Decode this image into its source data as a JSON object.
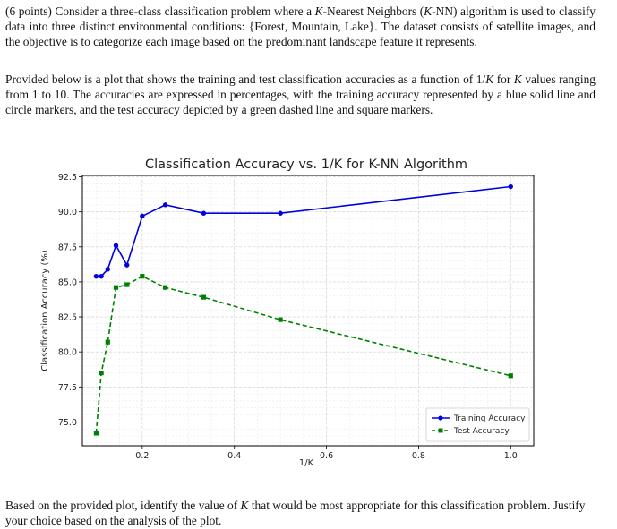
{
  "question": {
    "points_label": "(6 points)",
    "intro_a": " Consider a three-class classification problem where a ",
    "k_var": "K",
    "intro_b": "-Nearest Neighbors (",
    "intro_c": "-NN) algorithm is used to classify data into three distinct environmental conditions: {Forest, Mountain, Lake}. The dataset consists of satellite images, and the objective is to categorize each image based on the predominant landscape feature it represents.",
    "desc_a": "Provided below is a plot that shows the training and test classification accuracies as a function of ",
    "desc_frac": "1/",
    "desc_b": " for ",
    "desc_c": " values ranging from 1 to 10. The accuracies are expressed in percentages, with the training accuracy represented by a blue solid line and circle markers, and the test accuracy depicted by a green dashed line and square markers.",
    "final_a": "Based on the provided plot, identify the value of ",
    "final_b": " that would be most appropriate for this classification problem. Justify your choice based on the analysis of the plot."
  },
  "chart_data": {
    "type": "line",
    "title": "Classification Accuracy vs. 1/K for K-NN Algorithm",
    "xlabel": "1/K",
    "ylabel": "Classification Accuracy (%)",
    "xlim": [
      0.07,
      1.05
    ],
    "ylim": [
      73.3,
      92.6
    ],
    "xticks": [
      0.2,
      0.4,
      0.6,
      0.8,
      1.0
    ],
    "xtick_labels": [
      "0.2",
      "0.4",
      "0.6",
      "0.8",
      "1.0"
    ],
    "yticks": [
      75.0,
      77.5,
      80.0,
      82.5,
      85.0,
      87.5,
      90.0,
      92.5
    ],
    "ytick_labels": [
      "75.0",
      "77.5",
      "80.0",
      "82.5",
      "85.0",
      "87.5",
      "90.0",
      "92.5"
    ],
    "grid": true,
    "legend_position": "bottom-right",
    "x": [
      0.1,
      0.1111,
      0.125,
      0.1429,
      0.1667,
      0.2,
      0.25,
      0.3333,
      0.5,
      1.0
    ],
    "series": [
      {
        "name": "Training Accuracy",
        "color": "#0000dd",
        "style": "solid",
        "marker": "circle",
        "values": [
          85.4,
          85.4,
          85.9,
          87.6,
          86.2,
          89.7,
          90.5,
          89.9,
          89.9,
          91.8
        ]
      },
      {
        "name": "Test Accuracy",
        "color": "#008000",
        "style": "dashed",
        "marker": "square",
        "values": [
          74.2,
          78.5,
          80.7,
          84.6,
          84.8,
          85.4,
          84.6,
          83.9,
          82.3,
          78.3
        ]
      }
    ]
  }
}
